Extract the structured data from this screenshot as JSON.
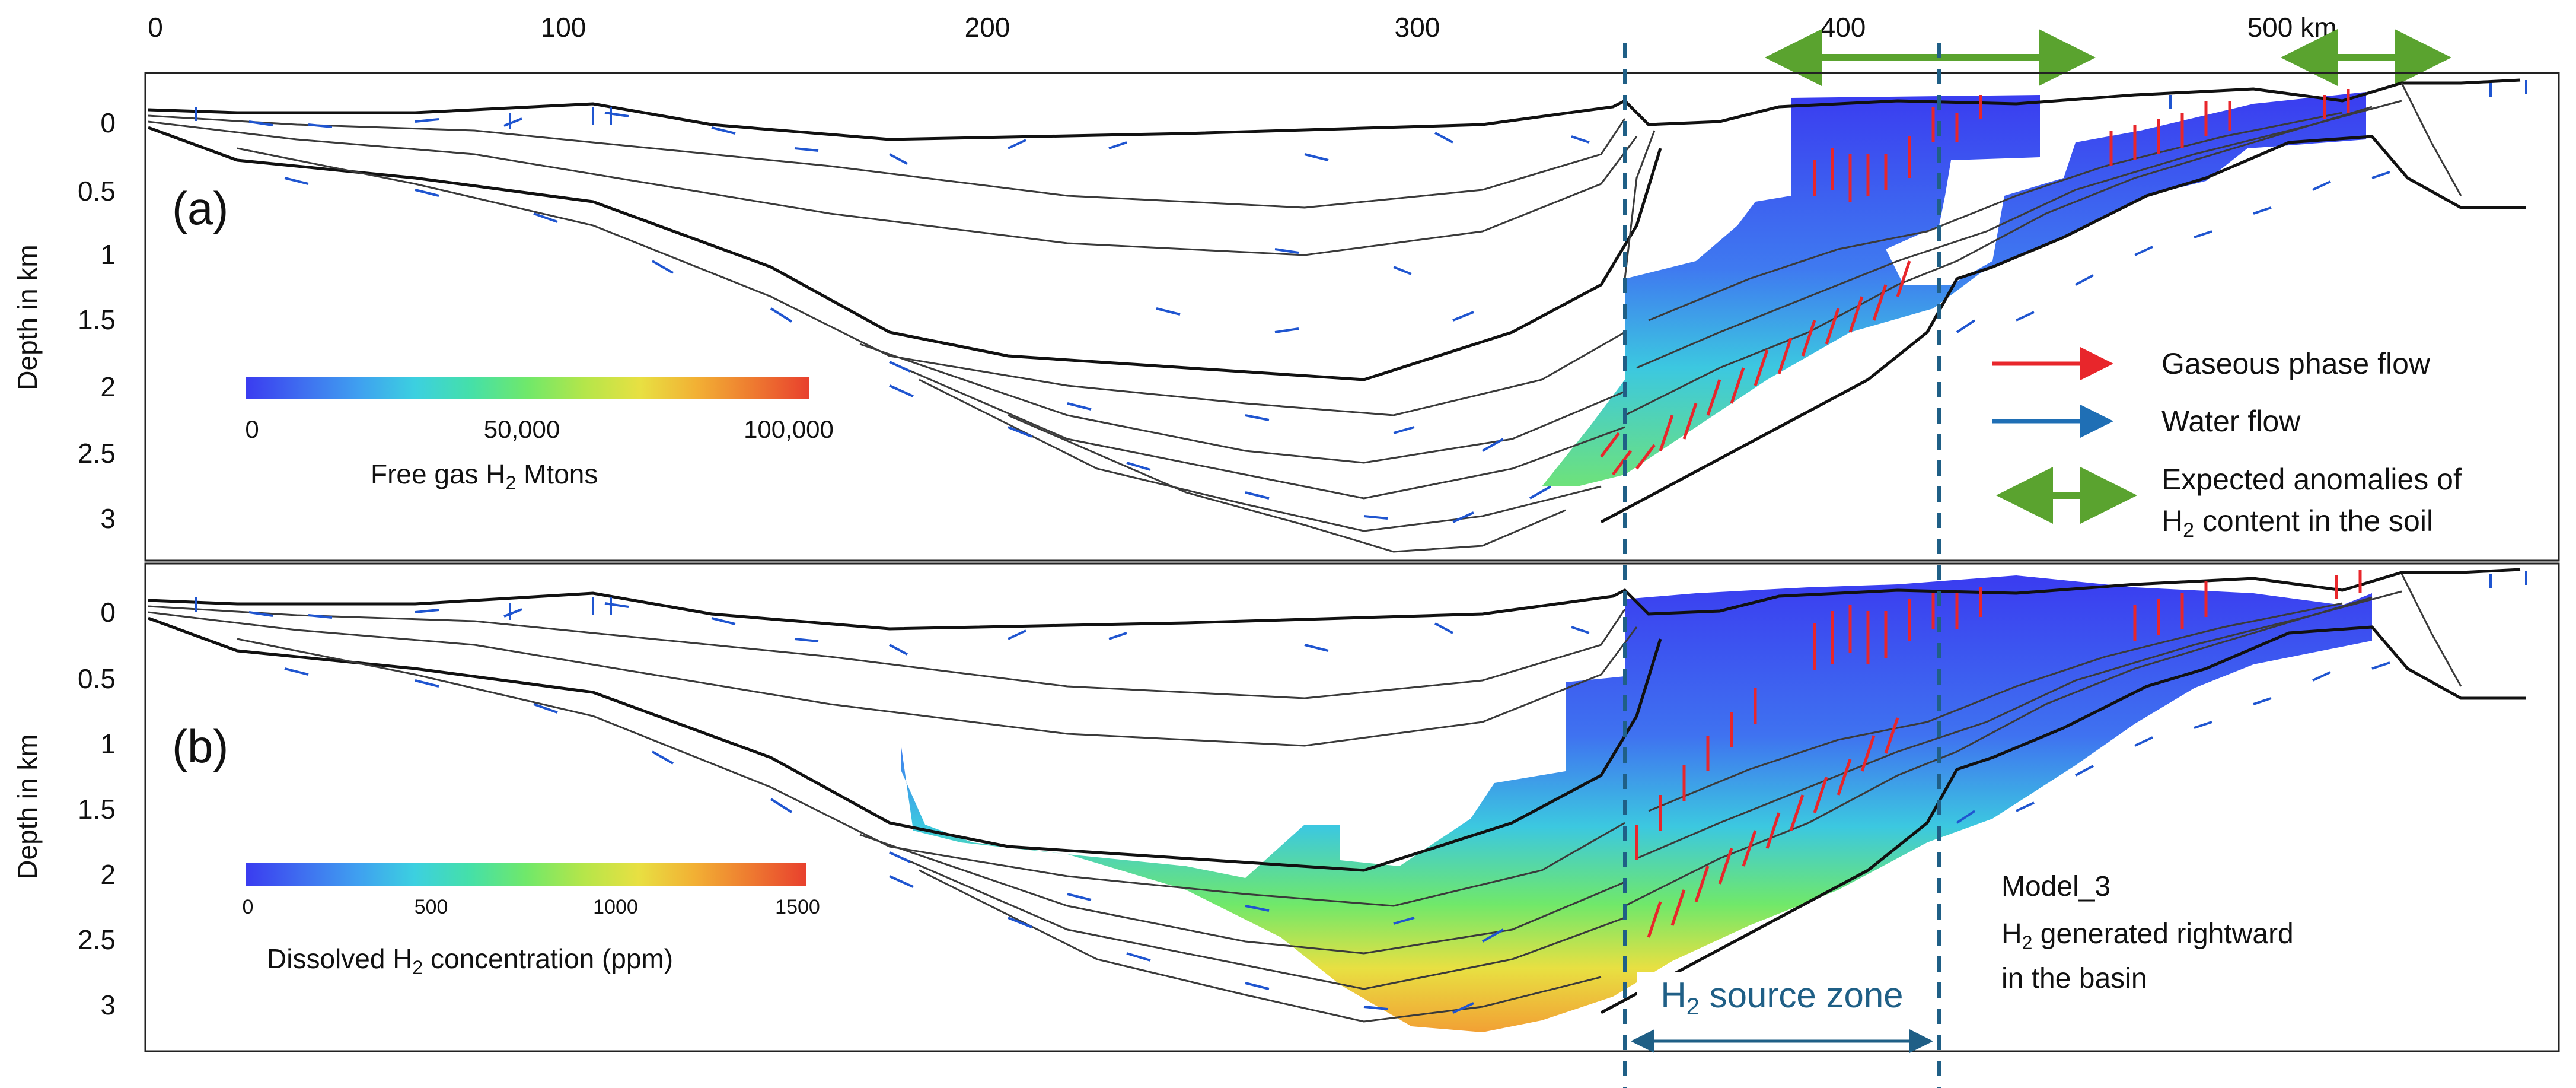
{
  "x_axis": {
    "ticks": [
      {
        "value": 0,
        "label": "0"
      },
      {
        "value": 100,
        "label": "100"
      },
      {
        "value": 200,
        "label": "200"
      },
      {
        "value": 300,
        "label": "300"
      },
      {
        "value": 400,
        "label": "400"
      },
      {
        "value": 500,
        "label": "500 km"
      }
    ]
  },
  "panels": [
    {
      "id": "a",
      "tag": "(a)",
      "ylabel": "Depth in km",
      "depth_ticks": [
        "0",
        "0.5",
        "1",
        "1.5",
        "2",
        "2.5",
        "3"
      ],
      "colorbar": {
        "title_prefix": "Free gas H",
        "title_sub": "2",
        "title_suffix": " Mtons",
        "labels": [
          "0",
          "50,000",
          "100,000"
        ]
      }
    },
    {
      "id": "b",
      "tag": "(b)",
      "ylabel": "Depth in km",
      "depth_ticks": [
        "0",
        "0.5",
        "1",
        "1.5",
        "2",
        "2.5",
        "3"
      ],
      "colorbar": {
        "title_prefix": "Dissolved H",
        "title_sub": "2",
        "title_suffix": " concentration (ppm)",
        "labels": [
          "0",
          "500",
          "1000",
          "1500"
        ]
      }
    }
  ],
  "legend": {
    "gas": "Gaseous phase flow",
    "water": "Water flow",
    "anomaly_line1": "Expected anomalies of",
    "anomaly_line2_prefix": "H",
    "anomaly_line2_sub": "2",
    "anomaly_line2_suffix": " content in the soil",
    "gas_color": "#e8262b",
    "water_color": "#1f6fb5",
    "anomaly_color": "#5aa32f"
  },
  "model_note": {
    "line1": "Model_3",
    "line2_prefix": "H",
    "line2_sub": "2",
    "line2_suffix": " generated rightward",
    "line3": "in the basin"
  },
  "source_zone": {
    "prefix": "H",
    "sub": "2",
    "suffix": " source zone",
    "from_km": 345,
    "to_km": 418,
    "color": "#1f5f86"
  },
  "anomaly_zones_km": [
    [
      382,
      455
    ],
    [
      500,
      535
    ]
  ],
  "colormap": [
    "#3a3cf0",
    "#3f6ef0",
    "#3fa0f0",
    "#3cd0e0",
    "#45e0a8",
    "#70e86a",
    "#b4e64a",
    "#e8e042",
    "#f2b034",
    "#ee7a30",
    "#e8402e"
  ]
}
